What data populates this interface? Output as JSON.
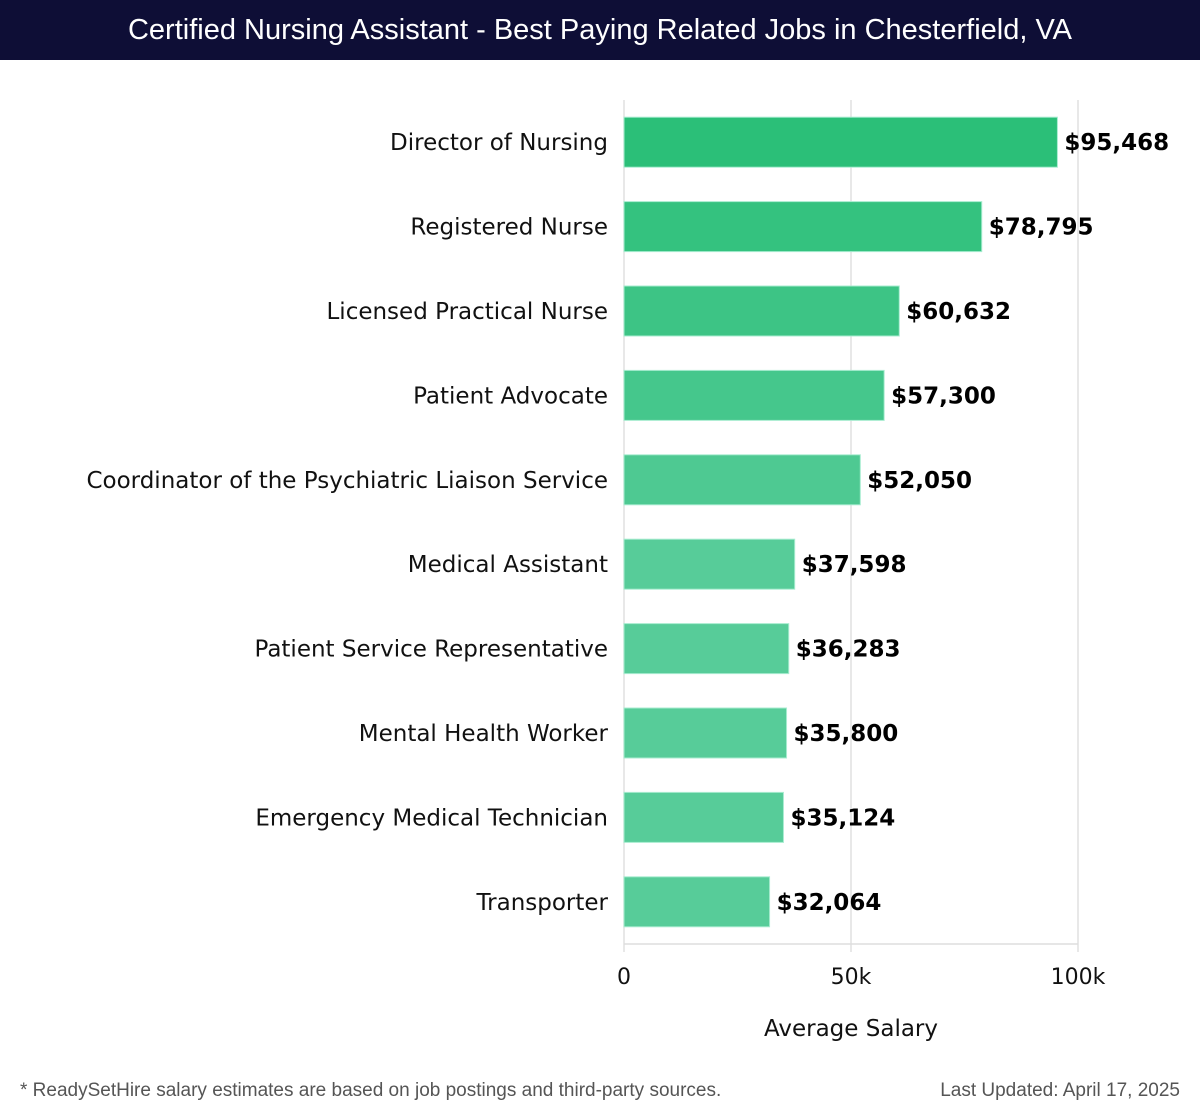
{
  "title": "Certified Nursing Assistant - Best Paying Related Jobs in Chesterfield, VA",
  "chart_data": {
    "type": "bar",
    "orientation": "horizontal",
    "title": "Certified Nursing Assistant - Best Paying Related Jobs in Chesterfield, VA",
    "xlabel": "Average Salary",
    "ylabel": "",
    "xlim": [
      0,
      100000
    ],
    "xticks": [
      0,
      50000,
      100000
    ],
    "xtick_labels": [
      "0",
      "50k",
      "100k"
    ],
    "grid": true,
    "categories": [
      "Director of Nursing",
      "Registered Nurse",
      "Licensed Practical Nurse",
      "Patient Advocate",
      "Coordinator of the Psychiatric Liaison Service",
      "Medical Assistant",
      "Patient Service Representative",
      "Mental Health Worker",
      "Emergency Medical Technician",
      "Transporter"
    ],
    "values": [
      95468,
      78795,
      60632,
      57300,
      52050,
      37598,
      36283,
      35800,
      35124,
      32064
    ],
    "value_labels": [
      "$95,468",
      "$78,795",
      "$60,632",
      "$57,300",
      "$52,050",
      "$37,598",
      "$36,283",
      "$35,800",
      "$35,124",
      "$32,064"
    ],
    "colors": {
      "top": "#2bbf78",
      "bottom": "#57cc99"
    }
  },
  "footer": {
    "note": "* ReadySetHire salary estimates are based on job postings and third-party sources.",
    "updated": "Last Updated: April 17, 2025"
  }
}
